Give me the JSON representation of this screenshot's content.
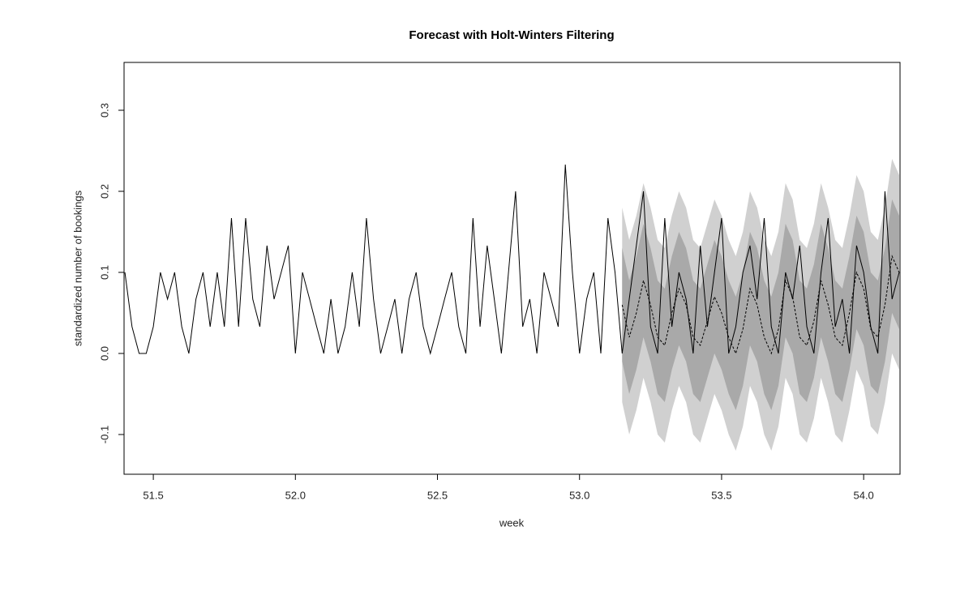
{
  "chart_data": {
    "type": "line",
    "title": "Forecast with Holt-Winters Filtering",
    "x_label": "week",
    "y_label": "standardized number of bookings",
    "xlim": [
      51.397,
      54.128
    ],
    "ylim": [
      -0.149,
      0.359
    ],
    "xticks": [
      51.5,
      {
        "value": 52,
        "label": "52.0"
      },
      52.5,
      {
        "value": 53,
        "label": "53.0"
      },
      53.5,
      {
        "value": 54,
        "label": "54.0"
      }
    ],
    "yticks": [
      -0.1,
      {
        "value": 0,
        "label": "0.0"
      },
      0.1,
      0.2,
      0.3
    ],
    "series": [
      {
        "color": "#000000",
        "dashed": false,
        "x": [
          51.4,
          51.425,
          51.45,
          51.475,
          51.5,
          51.525,
          51.55,
          51.575,
          51.6,
          51.625,
          51.65,
          51.675,
          51.7,
          51.725,
          51.75,
          51.775,
          51.8,
          51.825,
          51.85,
          51.875,
          51.9,
          51.925,
          51.95,
          51.975,
          52,
          52.025,
          52.05,
          52.075,
          52.1,
          52.125,
          52.15,
          52.175,
          52.2,
          52.225,
          52.25,
          52.275,
          52.3,
          52.325,
          52.35,
          52.375,
          52.4,
          52.425,
          52.45,
          52.475,
          52.5,
          52.525,
          52.55,
          52.575,
          52.6,
          52.625,
          52.65,
          52.675,
          52.7,
          52.725,
          52.75,
          52.775,
          52.8,
          52.825,
          52.85,
          52.875,
          52.9,
          52.925,
          52.95,
          52.975,
          53,
          53.025,
          53.05,
          53.075,
          53.1,
          53.125,
          53.15,
          53.175,
          53.2,
          53.225,
          53.25,
          53.275,
          53.3,
          53.325,
          53.35,
          53.375,
          53.4,
          53.425,
          53.45,
          53.475,
          53.5,
          53.525,
          53.55,
          53.575,
          53.6,
          53.625,
          53.65,
          53.675,
          53.7,
          53.725,
          53.75,
          53.775,
          53.8,
          53.825,
          53.85,
          53.875,
          53.9,
          53.925,
          53.95,
          53.975,
          54,
          54.025,
          54.05,
          54.075,
          54.1,
          54.125
        ],
        "values": [
          0.1,
          0.033,
          0,
          0,
          0.033,
          0.1,
          0.067,
          0.1,
          0.033,
          0,
          0.067,
          0.1,
          0.033,
          0.1,
          0.033,
          0.167,
          0.033,
          0.167,
          0.067,
          0.033,
          0.133,
          0.067,
          0.1,
          0.133,
          0,
          0.1,
          0.067,
          0.033,
          0,
          0.067,
          0,
          0.033,
          0.1,
          0.033,
          0.167,
          0.067,
          0,
          0.033,
          0.067,
          0,
          0.067,
          0.1,
          0.033,
          0,
          0.033,
          0.067,
          0.1,
          0.033,
          0,
          0.167,
          0.033,
          0.133,
          0.067,
          0,
          0.1,
          0.2,
          0.033,
          0.067,
          0,
          0.1,
          0.067,
          0.033,
          0.233,
          0.1,
          0,
          0.067,
          0.1,
          0,
          0.167,
          0.1,
          0,
          0.067,
          0.133,
          0.2,
          0.033,
          0,
          0.167,
          0.033,
          0.1,
          0.067,
          0,
          0.133,
          0.033,
          0.1,
          0.167,
          0,
          0.033,
          0.1,
          0.133,
          0.067,
          0.167,
          0.033,
          0,
          0.1,
          0.067,
          0.133,
          0.033,
          0,
          0.1,
          0.167,
          0.033,
          0.067,
          0,
          0.133,
          0.1,
          0.033,
          0,
          0.2,
          0.067,
          0.1
        ]
      },
      {
        "color": "#000000",
        "dashed": true,
        "x": [
          53.15,
          53.175,
          53.2,
          53.225,
          53.25,
          53.275,
          53.3,
          53.325,
          53.35,
          53.375,
          53.4,
          53.425,
          53.45,
          53.475,
          53.5,
          53.525,
          53.55,
          53.575,
          53.6,
          53.625,
          53.65,
          53.675,
          53.7,
          53.725,
          53.75,
          53.775,
          53.8,
          53.825,
          53.85,
          53.875,
          53.9,
          53.925,
          53.95,
          53.975,
          54,
          54.025,
          54.05,
          54.075,
          54.1,
          54.125
        ],
        "values": [
          0.06,
          0.02,
          0.05,
          0.09,
          0.06,
          0.02,
          0.01,
          0.05,
          0.08,
          0.06,
          0.02,
          0.01,
          0.04,
          0.07,
          0.05,
          0.02,
          0.0,
          0.03,
          0.08,
          0.06,
          0.02,
          0.0,
          0.03,
          0.09,
          0.07,
          0.02,
          0.01,
          0.04,
          0.09,
          0.06,
          0.02,
          0.01,
          0.05,
          0.1,
          0.08,
          0.03,
          0.02,
          0.06,
          0.12,
          0.1
        ],
        "intervals": [
          {
            "color": "#d0d0d0",
            "upper": [
              0.18,
              0.14,
              0.17,
              0.21,
              0.18,
              0.14,
              0.13,
              0.17,
              0.2,
              0.18,
              0.14,
              0.13,
              0.16,
              0.19,
              0.17,
              0.14,
              0.12,
              0.15,
              0.2,
              0.18,
              0.14,
              0.12,
              0.15,
              0.21,
              0.19,
              0.14,
              0.13,
              0.16,
              0.21,
              0.18,
              0.14,
              0.13,
              0.17,
              0.22,
              0.2,
              0.15,
              0.14,
              0.18,
              0.24,
              0.22
            ],
            "lower": [
              -0.06,
              -0.1,
              -0.07,
              -0.03,
              -0.06,
              -0.1,
              -0.11,
              -0.07,
              -0.04,
              -0.06,
              -0.1,
              -0.11,
              -0.08,
              -0.05,
              -0.07,
              -0.1,
              -0.12,
              -0.09,
              -0.04,
              -0.06,
              -0.1,
              -0.12,
              -0.09,
              -0.03,
              -0.05,
              -0.1,
              -0.11,
              -0.08,
              -0.03,
              -0.06,
              -0.1,
              -0.11,
              -0.07,
              -0.02,
              -0.04,
              -0.09,
              -0.1,
              -0.06,
              0.0,
              -0.02
            ]
          },
          {
            "color": "#a9a9a9",
            "upper": [
              0.13,
              0.09,
              0.12,
              0.16,
              0.13,
              0.09,
              0.08,
              0.12,
              0.15,
              0.13,
              0.09,
              0.08,
              0.11,
              0.14,
              0.12,
              0.09,
              0.07,
              0.1,
              0.15,
              0.13,
              0.09,
              0.07,
              0.1,
              0.16,
              0.14,
              0.09,
              0.08,
              0.11,
              0.16,
              0.13,
              0.09,
              0.08,
              0.12,
              0.17,
              0.15,
              0.1,
              0.09,
              0.13,
              0.19,
              0.17
            ],
            "lower": [
              -0.01,
              -0.05,
              -0.02,
              0.02,
              -0.01,
              -0.05,
              -0.06,
              -0.02,
              0.01,
              -0.01,
              -0.05,
              -0.06,
              -0.03,
              0.0,
              -0.02,
              -0.05,
              -0.07,
              -0.04,
              0.01,
              -0.01,
              -0.05,
              -0.07,
              -0.04,
              0.02,
              0.0,
              -0.05,
              -0.06,
              -0.03,
              0.02,
              -0.01,
              -0.05,
              -0.06,
              -0.02,
              0.03,
              0.01,
              -0.04,
              -0.05,
              -0.01,
              0.05,
              0.03
            ]
          }
        ]
      }
    ]
  }
}
